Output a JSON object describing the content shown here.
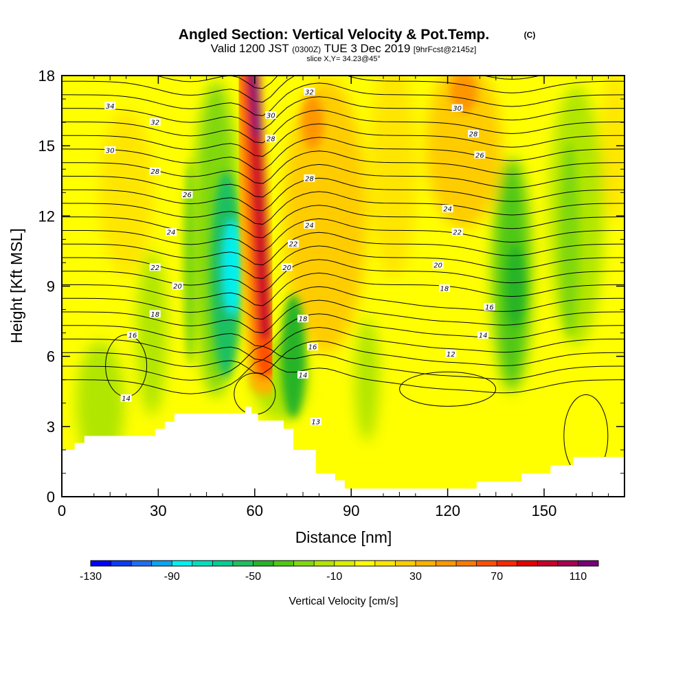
{
  "header": {
    "title": "Angled Section: Vertical Velocity & Pot.Temp.",
    "copyright": "(C)",
    "valid_prefix": "Valid 1200 JST",
    "valid_utc": "(0300Z)",
    "valid_date": "TUE 3 Dec 2019",
    "forecast": "[9hrFcst@2145z]",
    "slice": "slice X,Y= 34.23@45°"
  },
  "colors": {
    "terrain": "#ffffff",
    "contour": "#000000",
    "frame": "#000000"
  },
  "chart_data": {
    "type": "heatmap",
    "xlabel": "Distance [nm]",
    "ylabel": "Height [Kft MSL]",
    "xlim": [
      0,
      175
    ],
    "ylim": [
      0,
      18
    ],
    "x_ticks": [
      "0",
      "30",
      "60",
      "90",
      "120",
      "150"
    ],
    "y_ticks": [
      "0",
      "3",
      "6",
      "9",
      "12",
      "15",
      "18"
    ],
    "x_tick_values": [
      0,
      30,
      60,
      90,
      120,
      150
    ],
    "y_tick_values": [
      0,
      3,
      6,
      9,
      12,
      15,
      18
    ],
    "colorbar": {
      "label": "Vertical Velocity [cm/s]",
      "levels": [
        -130,
        -120,
        -110,
        -100,
        -90,
        -80,
        -70,
        -60,
        -50,
        -40,
        -30,
        -20,
        -10,
        0,
        10,
        20,
        30,
        40,
        50,
        60,
        70,
        80,
        90,
        100,
        110,
        120
      ],
      "colors": [
        "#0000ff",
        "#0a3cf5",
        "#1e6ef0",
        "#0aa5f0",
        "#00f0f0",
        "#00e0c0",
        "#00d090",
        "#1ec060",
        "#28b428",
        "#50c814",
        "#80d810",
        "#b0e600",
        "#d8f000",
        "#ffff00",
        "#ffe600",
        "#ffcc00",
        "#ffb000",
        "#ff9600",
        "#ff7800",
        "#ff5000",
        "#ff2800",
        "#e60000",
        "#c80028",
        "#aa0050",
        "#780078"
      ],
      "tick_labels": [
        "-130",
        "-90",
        "-50",
        "-10",
        "30",
        "70",
        "110"
      ],
      "tick_values": [
        -130,
        -90,
        -50,
        -10,
        30,
        70,
        110
      ]
    },
    "terrain_profile": {
      "x": [
        0,
        4,
        4,
        7,
        7,
        10,
        10,
        29,
        29,
        32,
        32,
        35,
        35,
        36,
        36,
        57,
        57,
        59,
        59,
        61,
        61,
        69,
        69,
        72,
        72,
        79,
        79,
        85,
        85,
        88,
        88,
        91,
        91,
        129,
        129,
        143,
        143,
        152,
        152,
        159,
        159,
        175
      ],
      "height": [
        2.0,
        2.0,
        2.3,
        2.3,
        2.6,
        2.6,
        2.6,
        2.6,
        2.9,
        2.9,
        3.2,
        3.2,
        3.55,
        3.55,
        3.55,
        3.55,
        3.85,
        3.85,
        3.55,
        3.55,
        3.25,
        3.25,
        2.9,
        2.9,
        2.0,
        2.0,
        1.0,
        1.0,
        0.7,
        0.7,
        0.35,
        0.35,
        0.35,
        0.35,
        0.65,
        0.65,
        1.0,
        1.0,
        1.35,
        1.35,
        1.7,
        1.7
      ]
    },
    "velocity_features": [
      {
        "kind": "updraft",
        "x": 61,
        "z": 15.5,
        "peak": 120
      },
      {
        "kind": "updraft",
        "x": 62,
        "z": 10,
        "peak": 80
      },
      {
        "kind": "downdraft",
        "x": 52,
        "z": 9.5,
        "peak": -90
      },
      {
        "kind": "downdraft",
        "x": 140,
        "z": 9,
        "peak": -50
      },
      {
        "kind": "updraft",
        "x": 125,
        "z": 17,
        "peak": 40
      },
      {
        "kind": "updraft",
        "x": 78,
        "z": 14,
        "peak": 30
      },
      {
        "kind": "downdraft",
        "x": 157,
        "z": 10,
        "peak": -30
      }
    ],
    "theta_contours": [
      {
        "label": "34",
        "label_x": 15,
        "label_z": 16.7
      },
      {
        "label": "32",
        "label_x": 29,
        "label_z": 16.0
      },
      {
        "label": "32",
        "label_x": 77,
        "label_z": 17.3
      },
      {
        "label": "30",
        "label_x": 15,
        "label_z": 14.8
      },
      {
        "label": "30",
        "label_x": 65,
        "label_z": 16.3
      },
      {
        "label": "30",
        "label_x": 123,
        "label_z": 16.6
      },
      {
        "label": "28",
        "label_x": 29,
        "label_z": 13.9
      },
      {
        "label": "28",
        "label_x": 65,
        "label_z": 15.3
      },
      {
        "label": "28",
        "label_x": 77,
        "label_z": 13.6
      },
      {
        "label": "28",
        "label_x": 128,
        "label_z": 15.5
      },
      {
        "label": "26",
        "label_x": 39,
        "label_z": 12.9
      },
      {
        "label": "26",
        "label_x": 130,
        "label_z": 14.6
      },
      {
        "label": "24",
        "label_x": 34,
        "label_z": 11.3
      },
      {
        "label": "24",
        "label_x": 77,
        "label_z": 11.6
      },
      {
        "label": "24",
        "label_x": 120,
        "label_z": 12.3
      },
      {
        "label": "22",
        "label_x": 29,
        "label_z": 9.8
      },
      {
        "label": "22",
        "label_x": 72,
        "label_z": 10.8
      },
      {
        "label": "22",
        "label_x": 123,
        "label_z": 11.3
      },
      {
        "label": "20",
        "label_x": 36,
        "label_z": 9.0
      },
      {
        "label": "20",
        "label_x": 70,
        "label_z": 9.8
      },
      {
        "label": "20",
        "label_x": 117,
        "label_z": 9.9
      },
      {
        "label": "18",
        "label_x": 29,
        "label_z": 7.8
      },
      {
        "label": "18",
        "label_x": 75,
        "label_z": 7.6
      },
      {
        "label": "18",
        "label_x": 119,
        "label_z": 8.9
      },
      {
        "label": "16",
        "label_x": 22,
        "label_z": 6.9
      },
      {
        "label": "16",
        "label_x": 78,
        "label_z": 6.4
      },
      {
        "label": "16",
        "label_x": 133,
        "label_z": 8.1
      },
      {
        "label": "14",
        "label_x": 20,
        "label_z": 4.2
      },
      {
        "label": "14",
        "label_x": 75,
        "label_z": 5.2
      },
      {
        "label": "14",
        "label_x": 131,
        "label_z": 6.9
      },
      {
        "label": "13",
        "label_x": 79,
        "label_z": 3.2
      },
      {
        "label": "12",
        "label_x": 121,
        "label_z": 6.1
      }
    ]
  }
}
